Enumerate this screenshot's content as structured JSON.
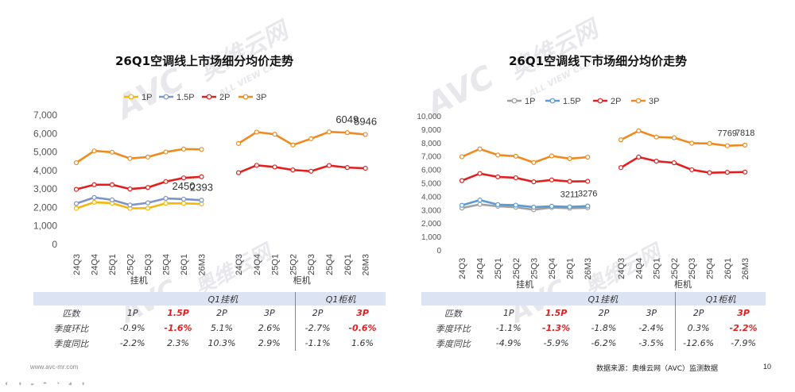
{
  "chart_data": [
    {
      "type": "line",
      "title": "26Q1空调线上市场细分均价走势",
      "categories": [
        "24Q3",
        "24Q4",
        "25Q1",
        "25Q2",
        "25Q3",
        "25Q4",
        "26Q1",
        "26M3"
      ],
      "groups": [
        {
          "name": "挂机",
          "series": [
            {
              "name": "1P",
              "color": "#f2b90c",
              "values": [
                1950,
                2280,
                2230,
                1950,
                1960,
                2220,
                2220,
                2190
              ]
            },
            {
              "name": "1.5P",
              "color": "#7f93c4",
              "values": [
                2210,
                2540,
                2410,
                2130,
                2250,
                2490,
                2450,
                2393
              ]
            },
            {
              "name": "2P",
              "color": "#e02020",
              "values": [
                2980,
                3230,
                3230,
                3000,
                3080,
                3400,
                3600,
                3660
              ]
            },
            {
              "name": "3P",
              "color": "#ee8a1e",
              "values": [
                4420,
                5060,
                4990,
                4650,
                4730,
                5000,
                5160,
                5140
              ]
            }
          ]
        },
        {
          "name": "柜机",
          "series": [
            {
              "name": "2P",
              "color": "#e02020",
              "values": [
                3880,
                4280,
                4190,
                4030,
                3960,
                4270,
                4160,
                4120
              ]
            },
            {
              "name": "3P",
              "color": "#ee8a1e",
              "values": [
                5460,
                6080,
                5960,
                5380,
                5720,
                6090,
                6049,
                5946
              ]
            }
          ]
        }
      ],
      "labels": [
        {
          "group": 0,
          "series": 1,
          "index": 6,
          "text": "2450"
        },
        {
          "group": 0,
          "series": 1,
          "index": 7,
          "text": "2393"
        },
        {
          "group": 1,
          "series": 1,
          "index": 6,
          "text": "6049"
        },
        {
          "group": 1,
          "series": 1,
          "index": 7,
          "text": "5946"
        }
      ],
      "legend": [
        "1P",
        "1.5P",
        "2P",
        "3P"
      ],
      "yticks": [
        "0",
        "1,000",
        "2,000",
        "3,000",
        "4,000",
        "5,000",
        "6,000",
        "7,000"
      ],
      "ylim": [
        0,
        7000
      ],
      "grid": false
    },
    {
      "type": "line",
      "title": "26Q1空调线下市场细分均价走势",
      "categories": [
        "24Q3",
        "24Q4",
        "25Q1",
        "25Q2",
        "25Q3",
        "25Q4",
        "26Q1",
        "26M3"
      ],
      "groups": [
        {
          "name": "挂机",
          "series": [
            {
              "name": "1P",
              "color": "#a0a0a0",
              "values": [
                3120,
                3400,
                3260,
                3180,
                3000,
                3160,
                3110,
                3140
              ]
            },
            {
              "name": "1.5P",
              "color": "#5b9bd5",
              "values": [
                3330,
                3720,
                3380,
                3340,
                3190,
                3260,
                3211,
                3276
              ]
            },
            {
              "name": "2P",
              "color": "#e02020",
              "values": [
                5170,
                5700,
                5450,
                5380,
                5080,
                5220,
                5110,
                5120
              ]
            },
            {
              "name": "3P",
              "color": "#ee8a1e",
              "values": [
                6950,
                7530,
                7080,
                6990,
                6520,
                7010,
                6810,
                6920
              ]
            }
          ]
        },
        {
          "name": "柜机",
          "series": [
            {
              "name": "2P",
              "color": "#e02020",
              "values": [
                6140,
                6930,
                6620,
                6500,
                5980,
                5760,
                5790,
                5810
              ]
            },
            {
              "name": "3P",
              "color": "#ee8a1e",
              "values": [
                8210,
                8880,
                8420,
                8370,
                7960,
                7940,
                7769,
                7818
              ]
            }
          ]
        }
      ],
      "labels": [
        {
          "group": 0,
          "series": 1,
          "index": 6,
          "text": "3211"
        },
        {
          "group": 0,
          "series": 1,
          "index": 7,
          "text": "3276"
        },
        {
          "group": 1,
          "series": 1,
          "index": 6,
          "text": "7769"
        },
        {
          "group": 1,
          "series": 1,
          "index": 7,
          "text": "7818"
        }
      ],
      "legend": [
        "1P",
        "1.5P",
        "2P",
        "3P"
      ],
      "yticks": [
        "0",
        "1,000",
        "2,000",
        "3,000",
        "4,000",
        "5,000",
        "6,000",
        "7,000",
        "8,000",
        "9,000",
        "10,000"
      ],
      "ylim": [
        0,
        10000
      ],
      "grid": false
    }
  ],
  "tables": [
    {
      "header_left": "Q1挂机",
      "header_right": "Q1柜机",
      "rows": [
        [
          "匹数",
          "1P",
          "1.5P",
          "2P",
          "3P",
          "2P",
          "3P"
        ],
        [
          "季度环比",
          "-0.9%",
          "-1.6%",
          "5.1%",
          "2.6%",
          "-2.7%",
          "-0.6%"
        ],
        [
          "季度同比",
          "-2.2%",
          "2.3%",
          "10.3%",
          "2.9%",
          "-1.1%",
          "1.6%"
        ]
      ]
    },
    {
      "header_left": "Q1挂机",
      "header_right": "Q1柜机",
      "rows": [
        [
          "匹数",
          "1P",
          "1.5P",
          "2P",
          "3P",
          "2P",
          "3P"
        ],
        [
          "季度环比",
          "-1.1%",
          "-1.3%",
          "-1.8%",
          "-2.4%",
          "0.3%",
          "-2.2%"
        ],
        [
          "季度同比",
          "-4.9%",
          "-5.9%",
          "-6.2%",
          "-3.5%",
          "-12.6%",
          "-7.9%"
        ]
      ]
    }
  ],
  "footer": {
    "website": "www.avc-mr.com",
    "source": "数据来源：奥维云网（AVC）监测数据",
    "page": "10"
  },
  "watermark": {
    "brand": "AVC",
    "cn": "奥维云网",
    "en": "ALL VIEW CLOUD"
  }
}
